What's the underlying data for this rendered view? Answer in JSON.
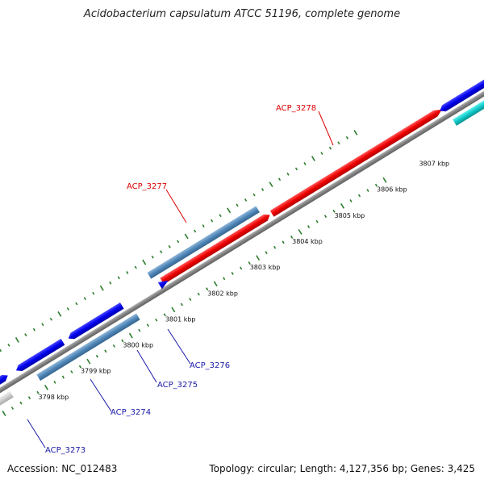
{
  "title": "Acidobacterium capsulatum ATCC 51196, complete genome",
  "footer": {
    "accession": "Accession: NC_012483",
    "summary": "Topology: circular; Length: 4,127,356 bp; Genes: 3,425"
  },
  "colors": {
    "backbone": "#8a8a8a",
    "tick": "#2d7d2d",
    "red_label": "#dd0000",
    "blue_label": "#1a1aa8"
  },
  "ticks": [
    "3798 kbp",
    "3799 kbp",
    "3800 kbp",
    "3801 kbp",
    "3802 kbp",
    "3803 kbp",
    "3804 kbp",
    "3805 kbp",
    "3806 kbp",
    "3807 kbp"
  ],
  "genes": [
    {
      "label": "ACP_3278",
      "color": "red"
    },
    {
      "label": "ACP_3277",
      "color": "red"
    },
    {
      "label": "ACP_3276",
      "color": "blue"
    },
    {
      "label": "ACP_3275",
      "color": "blue"
    },
    {
      "label": "ACP_3274",
      "color": "blue"
    },
    {
      "label": "ACP_3273",
      "color": "blue"
    }
  ]
}
